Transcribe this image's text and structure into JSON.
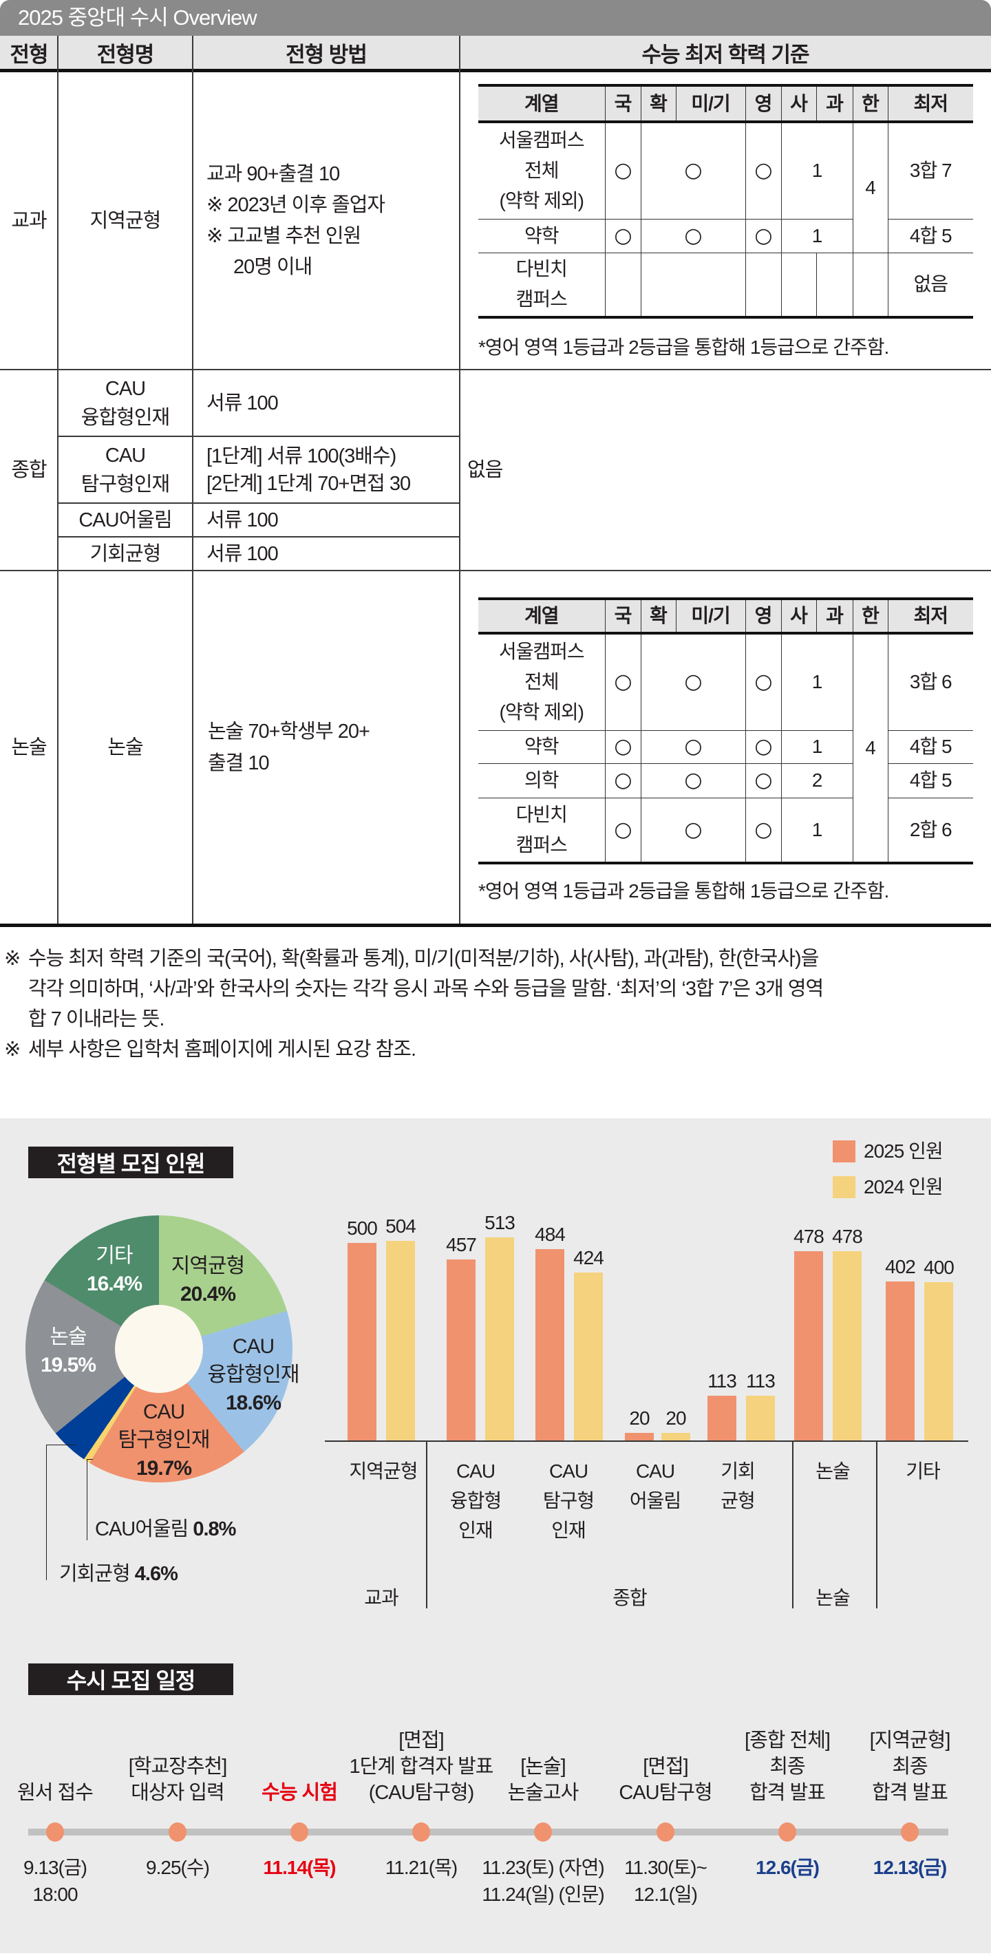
{
  "title": "2025 중앙대 수시 Overview",
  "overview": {
    "headers": [
      "전형",
      "전형명",
      "전형 방법",
      "수능 최저 학력 기준"
    ],
    "criteria_headers": [
      "계열",
      "국",
      "확",
      "미/기",
      "영",
      "사",
      "과",
      "한",
      "최저"
    ],
    "gyogwa": {
      "type": "교과",
      "name": "지역균형",
      "method": [
        "교과 90+출결 10",
        "※ 2023년 이후 졸업자",
        "※ 고교별 추천 인원",
        "20명 이내"
      ],
      "criteria_rows": [
        {
          "track": [
            "서울캠퍼스",
            "전체",
            "(약학 제외)"
          ],
          "kor": "○",
          "math": "○",
          "eng": "○",
          "inquiry": "1",
          "history": "4",
          "minimum": "3합 7"
        },
        {
          "track": [
            "약학"
          ],
          "kor": "○",
          "math": "○",
          "eng": "○",
          "inquiry": "1",
          "minimum": "4합 5"
        },
        {
          "track": [
            "다빈치",
            "캠퍼스"
          ],
          "kor": "",
          "math": "",
          "eng": "",
          "social": "",
          "science": "",
          "history": "",
          "minimum": "없음"
        }
      ],
      "criteria_note": "*영어 영역 1등급과 2등급을 통합해 1등급으로 간주함."
    },
    "jonghap": {
      "type": "종합",
      "rows": [
        {
          "name": [
            "CAU",
            "융합형인재"
          ],
          "method": [
            "서류 100"
          ]
        },
        {
          "name": [
            "CAU",
            "탐구형인재"
          ],
          "method": [
            "[1단계] 서류 100(3배수)",
            "[2단계] 1단계 70+면접 30"
          ]
        },
        {
          "name": [
            "CAU어울림"
          ],
          "method": [
            "서류 100"
          ]
        },
        {
          "name": [
            "기회균형"
          ],
          "method": [
            "서류 100"
          ]
        }
      ],
      "criteria": "없음"
    },
    "nonsul": {
      "type": "논술",
      "name": "논술",
      "method": [
        "논술 70+학생부 20+",
        "출결 10"
      ],
      "criteria_rows": [
        {
          "track": [
            "서울캠퍼스",
            "전체",
            "(약학 제외)"
          ],
          "kor": "○",
          "math": "○",
          "eng": "○",
          "inquiry": "1",
          "history": "4",
          "minimum": "3합 6"
        },
        {
          "track": [
            "약학"
          ],
          "kor": "○",
          "math": "○",
          "eng": "○",
          "inquiry": "1",
          "minimum": "4합 5"
        },
        {
          "track": [
            "의학"
          ],
          "kor": "○",
          "math": "○",
          "eng": "○",
          "inquiry": "2",
          "minimum": "4합 5"
        },
        {
          "track": [
            "다빈치",
            "캠퍼스"
          ],
          "kor": "○",
          "math": "○",
          "eng": "○",
          "inquiry": "1",
          "minimum": "2합 6"
        }
      ],
      "criteria_note": "*영어 영역 1등급과 2등급을 통합해 1등급으로 간주함."
    }
  },
  "notes": [
    {
      "marker": "※",
      "lines": [
        "수능 최저 학력 기준의 국(국어), 확(확률과 통계), 미/기(미적분/기하), 사(사탐), 과(과탐), 한(한국사)을",
        "각각 의미하며, ‘사/과’와 한국사의 숫자는 각각 응시 과목 수와 등급을 말함. ‘최저’의 ‘3합 7’은 3개 영역",
        "합 7 이내라는 뜻."
      ]
    },
    {
      "marker": "※",
      "lines": [
        "세부 사항은 입학처 홈페이지에 게시된 요강 참조."
      ]
    }
  ],
  "enrollment": {
    "title": "전형별 모집 인원",
    "legend": [
      {
        "label": "2025 인원",
        "color": "#f0926e"
      },
      {
        "label": "2024 인원",
        "color": "#f5d27d"
      }
    ],
    "pie_labels": [
      {
        "lines": [
          "지역균형"
        ],
        "pct": "20.4%"
      },
      {
        "lines": [
          "CAU",
          "융합형인재"
        ],
        "pct": "18.6%"
      },
      {
        "lines": [
          "CAU",
          "탐구형인재"
        ],
        "pct": "19.7%"
      },
      {
        "lines": [
          "CAU어울림"
        ],
        "pct": "0.8%"
      },
      {
        "lines": [
          "기회균형"
        ],
        "pct": "4.6%"
      },
      {
        "lines": [
          "논술"
        ],
        "pct": "19.5%"
      },
      {
        "lines": [
          "기타"
        ],
        "pct": "16.4%"
      }
    ],
    "bar_labels": [
      [
        "지역균형"
      ],
      [
        "CAU",
        "융합형",
        "인재"
      ],
      [
        "CAU",
        "탐구형",
        "인재"
      ],
      [
        "CAU",
        "어울림"
      ],
      [
        "기회",
        "균형"
      ],
      [
        "논술"
      ],
      [
        "기타"
      ]
    ],
    "groups": [
      "교과",
      "종합",
      "논술"
    ]
  },
  "schedule": {
    "title": "수시 모집 일정",
    "colors": {
      "dot": "#f0926e",
      "line": "#c1c1c1",
      "red": "#e60012",
      "blue": "#1b3f8c"
    },
    "events": [
      {
        "label": [
          "원서 접수"
        ],
        "date": [
          "9.13(금)",
          "18:00"
        ]
      },
      {
        "label": [
          "[학교장추천]",
          "대상자 입력"
        ],
        "date": [
          "9.25(수)"
        ]
      },
      {
        "label": [
          "수능 시험"
        ],
        "date": [
          "11.14(목)"
        ],
        "highlight": "red"
      },
      {
        "label": [
          "[면접]",
          "1단계 합격자 발표",
          "(CAU탐구형)"
        ],
        "date": [
          "11.21(목)"
        ]
      },
      {
        "label": [
          "[논술]",
          "논술고사"
        ],
        "date": [
          "11.23(토) (자연)",
          "11.24(일) (인문)"
        ]
      },
      {
        "label": [
          "[면접]",
          "CAU탐구형"
        ],
        "date": [
          "11.30(토)~",
          "12.1(일)"
        ]
      },
      {
        "label": [
          "[종합 전체]",
          "최종",
          "합격 발표"
        ],
        "date": [
          "12.6(금)"
        ],
        "highlight": "blue"
      },
      {
        "label": [
          "[지역균형]",
          "최종",
          "합격 발표"
        ],
        "date": [
          "12.13(금)"
        ],
        "highlight": "blue"
      }
    ]
  },
  "chart_data": [
    {
      "type": "pie",
      "title": "전형별 모집 인원",
      "categories": [
        "지역균형",
        "CAU 융합형인재",
        "CAU 탐구형인재",
        "CAU어울림",
        "기회균형",
        "논술",
        "기타"
      ],
      "values": [
        20.4,
        18.6,
        19.7,
        0.8,
        4.6,
        19.5,
        16.4
      ],
      "unit": "%",
      "colors": [
        "#a8d18e",
        "#9bc2e6",
        "#f0926e",
        "#f7d46d",
        "#003f98",
        "#8e9196",
        "#4e8c6b"
      ],
      "start_angle": 0,
      "direction": "clockwise",
      "donut_hole": true
    },
    {
      "type": "bar",
      "title": "전형별 모집 인원",
      "categories": [
        "지역균형",
        "CAU 융합형인재",
        "CAU 탐구형인재",
        "CAU 어울림",
        "기회균형",
        "논술",
        "기타"
      ],
      "category_groups": [
        {
          "label": "교과",
          "categories": [
            "지역균형"
          ]
        },
        {
          "label": "종합",
          "categories": [
            "CAU 융합형인재",
            "CAU 탐구형인재",
            "CAU 어울림",
            "기회균형"
          ]
        },
        {
          "label": "논술",
          "categories": [
            "논술"
          ]
        }
      ],
      "series": [
        {
          "name": "2025 인원",
          "values": [
            500,
            457,
            484,
            20,
            113,
            478,
            402
          ],
          "color": "#f0926e"
        },
        {
          "name": "2024 인원",
          "values": [
            504,
            513,
            424,
            20,
            113,
            478,
            400
          ],
          "color": "#f5d27d"
        }
      ],
      "xlabel": "",
      "ylabel": "",
      "grid": false,
      "legend_position": "top-right",
      "data_labels": true
    }
  ]
}
